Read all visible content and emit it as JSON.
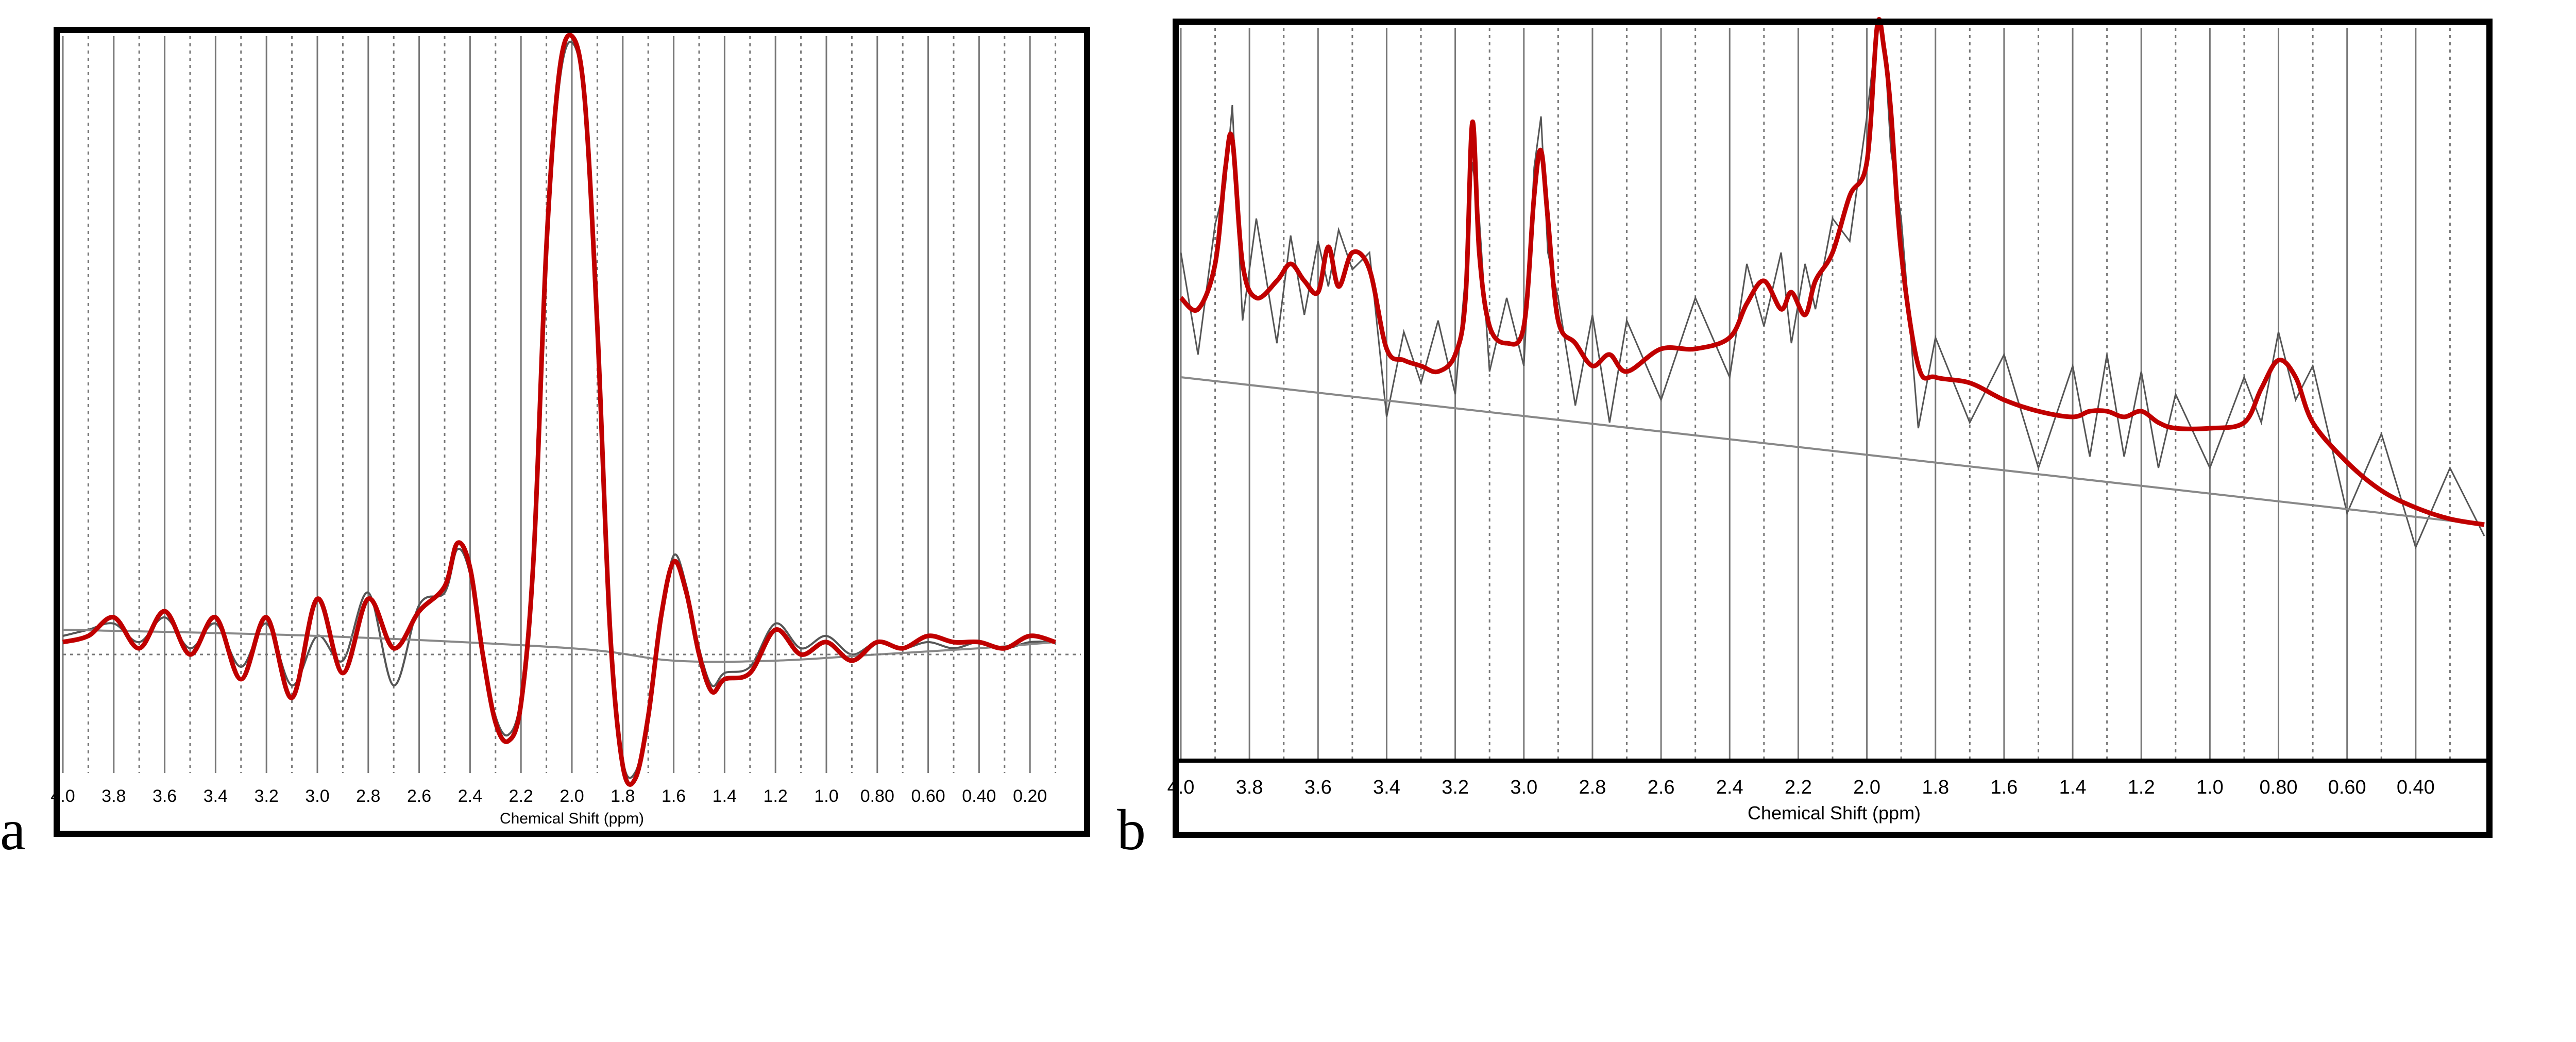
{
  "figure": {
    "panel_a_letter": "a",
    "panel_b_letter": "b"
  },
  "colors": {
    "fit": "#c00000",
    "data": "#555555",
    "frame": "#000000",
    "grid": "#777777",
    "baseline": "#888888"
  },
  "chart_data": [
    {
      "panel": "a",
      "type": "line",
      "xlabel": "Chemical Shift (ppm)",
      "ylabel": "",
      "xlim": [
        4.0,
        0.0
      ],
      "x_reversed": true,
      "grid": true,
      "tick_labels": [
        "4.0",
        "3.8",
        "3.6",
        "3.4",
        "3.2",
        "3.0",
        "2.8",
        "2.6",
        "2.4",
        "2.2",
        "2.0",
        "1.8",
        "1.6",
        "1.4",
        "1.2",
        "1.0",
        "0.80",
        "0.60",
        "0.40",
        "0.20"
      ],
      "ticks": [
        4.0,
        3.8,
        3.6,
        3.4,
        3.2,
        3.0,
        2.8,
        2.6,
        2.4,
        2.2,
        2.0,
        1.8,
        1.6,
        1.4,
        1.2,
        1.0,
        0.8,
        0.6,
        0.4,
        0.2
      ],
      "series": [
        {
          "role": "fit",
          "x": [
            4.0,
            3.9,
            3.8,
            3.7,
            3.6,
            3.5,
            3.4,
            3.3,
            3.2,
            3.1,
            3.0,
            2.9,
            2.8,
            2.7,
            2.6,
            2.5,
            2.45,
            2.4,
            2.35,
            2.3,
            2.25,
            2.2,
            2.15,
            2.1,
            2.05,
            2.0,
            1.95,
            1.9,
            1.85,
            1.8,
            1.75,
            1.7,
            1.65,
            1.6,
            1.55,
            1.5,
            1.45,
            1.4,
            1.3,
            1.2,
            1.1,
            1.0,
            0.9,
            0.8,
            0.7,
            0.6,
            0.5,
            0.4,
            0.3,
            0.2,
            0.1
          ],
          "y": [
            2,
            3,
            6,
            1,
            7,
            0,
            6,
            -4,
            6,
            -7,
            9,
            -3,
            9,
            1,
            7,
            11,
            18,
            14,
            0,
            -11,
            -14,
            -8,
            16,
            66,
            94,
            100,
            90,
            53,
            4,
            -18,
            -20,
            -10,
            6,
            15,
            10,
            0,
            -6,
            -4,
            -3,
            4,
            0,
            2,
            -1,
            2,
            1,
            3,
            2,
            2,
            1,
            3,
            2
          ]
        },
        {
          "role": "data",
          "x": [
            4.0,
            3.9,
            3.8,
            3.7,
            3.6,
            3.5,
            3.4,
            3.3,
            3.2,
            3.1,
            3.0,
            2.9,
            2.8,
            2.7,
            2.6,
            2.5,
            2.45,
            2.4,
            2.35,
            2.3,
            2.25,
            2.2,
            2.15,
            2.1,
            2.05,
            2.0,
            1.95,
            1.9,
            1.85,
            1.8,
            1.75,
            1.7,
            1.65,
            1.6,
            1.55,
            1.5,
            1.45,
            1.4,
            1.3,
            1.2,
            1.1,
            1.0,
            0.9,
            0.8,
            0.7,
            0.6,
            0.5,
            0.4,
            0.3,
            0.2,
            0.1
          ],
          "y": [
            3,
            4,
            5,
            2,
            6,
            1,
            5,
            -2,
            5,
            -5,
            3,
            -1,
            10,
            -5,
            8,
            10,
            17,
            13,
            0,
            -10,
            -13,
            -7,
            15,
            64,
            92,
            99,
            89,
            52,
            5,
            -17,
            -19,
            -10,
            5,
            16,
            11,
            1,
            -5,
            -3,
            -2,
            5,
            1,
            3,
            0,
            2,
            1,
            2,
            1,
            2,
            1,
            2,
            2
          ]
        },
        {
          "role": "baseline",
          "x": [
            4.0,
            3.0,
            2.0,
            1.6,
            1.2,
            0.8,
            0.4,
            0.1
          ],
          "y": [
            4,
            3,
            1,
            -1,
            -1,
            0,
            1,
            2
          ]
        },
        {
          "role": "zero-line",
          "x": [
            4.0,
            0.0
          ],
          "y": [
            0,
            0
          ]
        }
      ]
    },
    {
      "panel": "b",
      "type": "line",
      "xlabel": "Chemical Shift (ppm)",
      "ylabel": "",
      "xlim": [
        4.0,
        0.2
      ],
      "x_reversed": true,
      "grid": true,
      "tick_labels": [
        "4.0",
        "3.8",
        "3.6",
        "3.4",
        "3.2",
        "3.0",
        "2.8",
        "2.6",
        "2.4",
        "2.2",
        "2.0",
        "1.8",
        "1.6",
        "1.4",
        "1.2",
        "1.0",
        "0.80",
        "0.60",
        "0.40"
      ],
      "ticks": [
        4.0,
        3.8,
        3.6,
        3.4,
        3.2,
        3.0,
        2.8,
        2.6,
        2.4,
        2.2,
        2.0,
        1.8,
        1.6,
        1.4,
        1.2,
        1.0,
        0.8,
        0.6,
        0.4
      ],
      "series": [
        {
          "role": "fit",
          "x": [
            4.0,
            3.95,
            3.9,
            3.87,
            3.85,
            3.82,
            3.78,
            3.72,
            3.68,
            3.64,
            3.6,
            3.57,
            3.54,
            3.5,
            3.45,
            3.4,
            3.35,
            3.3,
            3.25,
            3.2,
            3.17,
            3.15,
            3.13,
            3.1,
            3.05,
            3.0,
            2.97,
            2.95,
            2.93,
            2.9,
            2.85,
            2.8,
            2.75,
            2.7,
            2.6,
            2.5,
            2.4,
            2.35,
            2.3,
            2.25,
            2.22,
            2.18,
            2.15,
            2.1,
            2.05,
            2.0,
            1.97,
            1.95,
            1.93,
            1.9,
            1.85,
            1.8,
            1.7,
            1.6,
            1.5,
            1.4,
            1.35,
            1.3,
            1.25,
            1.2,
            1.15,
            1.1,
            1.0,
            0.9,
            0.85,
            0.8,
            0.75,
            0.7,
            0.6,
            0.5,
            0.4,
            0.3,
            0.2
          ],
          "y": [
            52,
            50,
            58,
            75,
            80,
            58,
            52,
            55,
            58,
            55,
            53,
            61,
            54,
            60,
            57,
            43,
            41,
            40,
            39,
            42,
            52,
            83,
            60,
            47,
            44,
            47,
            70,
            78,
            66,
            48,
            44,
            40,
            42,
            39,
            43,
            43,
            45,
            51,
            55,
            50,
            53,
            49,
            55,
            60,
            70,
            76,
            100,
            96,
            85,
            60,
            40,
            38,
            37,
            34,
            32,
            31,
            32,
            32,
            31,
            32,
            30,
            29,
            29,
            30,
            36,
            41,
            38,
            30,
            23,
            18,
            15,
            13,
            12
          ]
        },
        {
          "role": "data",
          "x": [
            4.0,
            3.95,
            3.9,
            3.87,
            3.85,
            3.82,
            3.78,
            3.72,
            3.68,
            3.64,
            3.6,
            3.57,
            3.54,
            3.5,
            3.45,
            3.4,
            3.35,
            3.3,
            3.25,
            3.2,
            3.17,
            3.15,
            3.13,
            3.1,
            3.05,
            3.0,
            2.97,
            2.95,
            2.93,
            2.9,
            2.85,
            2.8,
            2.75,
            2.7,
            2.6,
            2.5,
            2.4,
            2.35,
            2.3,
            2.25,
            2.22,
            2.18,
            2.15,
            2.1,
            2.05,
            2.0,
            1.97,
            1.95,
            1.93,
            1.9,
            1.85,
            1.8,
            1.7,
            1.6,
            1.5,
            1.4,
            1.35,
            1.3,
            1.25,
            1.2,
            1.15,
            1.1,
            1.0,
            0.9,
            0.85,
            0.8,
            0.75,
            0.7,
            0.6,
            0.5,
            0.4,
            0.3,
            0.2
          ],
          "y": [
            60,
            42,
            65,
            72,
            86,
            48,
            66,
            44,
            63,
            49,
            62,
            54,
            64,
            57,
            60,
            31,
            46,
            37,
            48,
            35,
            56,
            76,
            66,
            39,
            52,
            40,
            75,
            84,
            60,
            52,
            33,
            49,
            30,
            48,
            34,
            52,
            38,
            58,
            47,
            60,
            44,
            58,
            50,
            66,
            62,
            84,
            100,
            98,
            78,
            66,
            29,
            45,
            30,
            42,
            22,
            40,
            24,
            42,
            24,
            39,
            22,
            35,
            22,
            38,
            30,
            46,
            34,
            40,
            14,
            28,
            8,
            22,
            10
          ]
        },
        {
          "role": "baseline",
          "x": [
            4.0,
            0.2
          ],
          "y": [
            38,
            12
          ]
        }
      ]
    }
  ]
}
